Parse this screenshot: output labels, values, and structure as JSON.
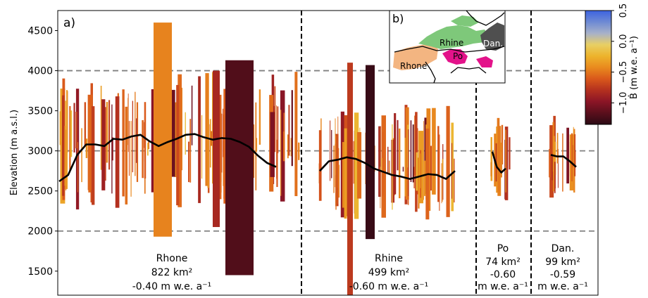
{
  "chart_data": [
    {
      "panel": "a)",
      "type": "bar",
      "ylabel": "Elevation (m a.s.l.)",
      "ylim": [
        1200,
        4750
      ],
      "yticks": [
        1500,
        2000,
        2500,
        3000,
        3500,
        4000,
        4500
      ],
      "gridlines_y": [
        2000,
        3000,
        4000
      ],
      "grid": "dashed horizontal at 2000, 3000, 4000",
      "basins": [
        {
          "name": "Rhone",
          "area": "822 km²",
          "mb": "-0.40 m w.e. a⁻¹"
        },
        {
          "name": "Rhine",
          "area": "499 km²",
          "mb": "-0.60 m w.e. a⁻¹"
        },
        {
          "name": "Po",
          "area": "74 km²",
          "mb_value": "-0.60",
          "mb_unit": "m w.e. a⁻¹"
        },
        {
          "name": "Dan.",
          "area": "99 km²",
          "mb_value": "-0.59",
          "mb_unit": "m w.e. a⁻¹"
        }
      ],
      "notable_glaciers": [
        {
          "basin": "Rhone",
          "elevation_range": [
            1930,
            4600
          ],
          "mass_balance": -0.45
        },
        {
          "basin": "Rhone",
          "elevation_range": [
            1450,
            4130
          ],
          "mass_balance": -1.2
        },
        {
          "basin": "Rhone",
          "elevation_range": [
            2050,
            4000
          ],
          "mass_balance": -0.85
        },
        {
          "basin": "Rhine",
          "elevation_range": [
            1900,
            4070
          ],
          "mass_balance": -1.3
        },
        {
          "basin": "Rhine",
          "elevation_range": [
            1100,
            4100
          ],
          "mass_balance": -0.75
        }
      ],
      "median_elevation_profile": {
        "Rhone": [
          2620,
          2700,
          2950,
          3080,
          3080,
          3060,
          3150,
          3140,
          3180,
          3200,
          3120,
          3060,
          3110,
          3150,
          3200,
          3210,
          3170,
          3140,
          3160,
          3150,
          3110,
          3050,
          2940,
          2850,
          2800
        ],
        "Rhine": [
          2750,
          2870,
          2890,
          2920,
          2900,
          2850,
          2780,
          2740,
          2700,
          2680,
          2650,
          2680,
          2710,
          2700,
          2650,
          2750
        ],
        "Po": [
          2990,
          2800,
          2730,
          2780
        ],
        "Dan.": [
          2950,
          2930,
          2930,
          2870,
          2800
        ]
      }
    },
    {
      "panel": "b)",
      "type": "map",
      "region_labels": [
        "Rhine",
        "Rhone",
        "Po",
        "Dan."
      ],
      "colors": {
        "Rhine": "#7ec87a",
        "Rhone": "#f3b581",
        "Po": "#e3138a",
        "Dan.": "#555555"
      }
    },
    {
      "type": "colorbar",
      "label": "Ḃ (m w.e. a⁻¹)",
      "range": [
        -1.35,
        0.5
      ],
      "ticks": [
        0.5,
        0.0,
        -0.5,
        -1.0
      ],
      "tick_labels": [
        "0.5",
        "0.0",
        "−0.5",
        "−1.0"
      ],
      "colormap": [
        "#2b0a14",
        "#5a0f1c",
        "#8b1526",
        "#b3301f",
        "#d9581b",
        "#e98a1e",
        "#edb32c",
        "#e8cf64",
        "#a7b1c9",
        "#6e8ad4",
        "#3d63e0"
      ]
    }
  ]
}
